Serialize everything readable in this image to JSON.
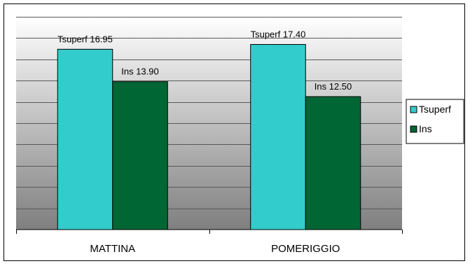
{
  "chart_data": {
    "type": "bar",
    "categories": [
      "MATTINA",
      "POMERIGGIO"
    ],
    "series": [
      {
        "name": "Tsuperf",
        "values": [
          16.95,
          17.4
        ],
        "color": "#33cccc"
      },
      {
        "name": "Ins",
        "values": [
          13.9,
          12.5
        ],
        "color": "#006633"
      }
    ],
    "data_labels": [
      [
        "Tsuperf 16.95",
        "Tsuperf 17.40"
      ],
      [
        "Ins 13.90",
        "Ins 12.50"
      ]
    ],
    "ylim": [
      0,
      20
    ],
    "grid": true,
    "legend": "right",
    "background": "gray-gradient"
  }
}
